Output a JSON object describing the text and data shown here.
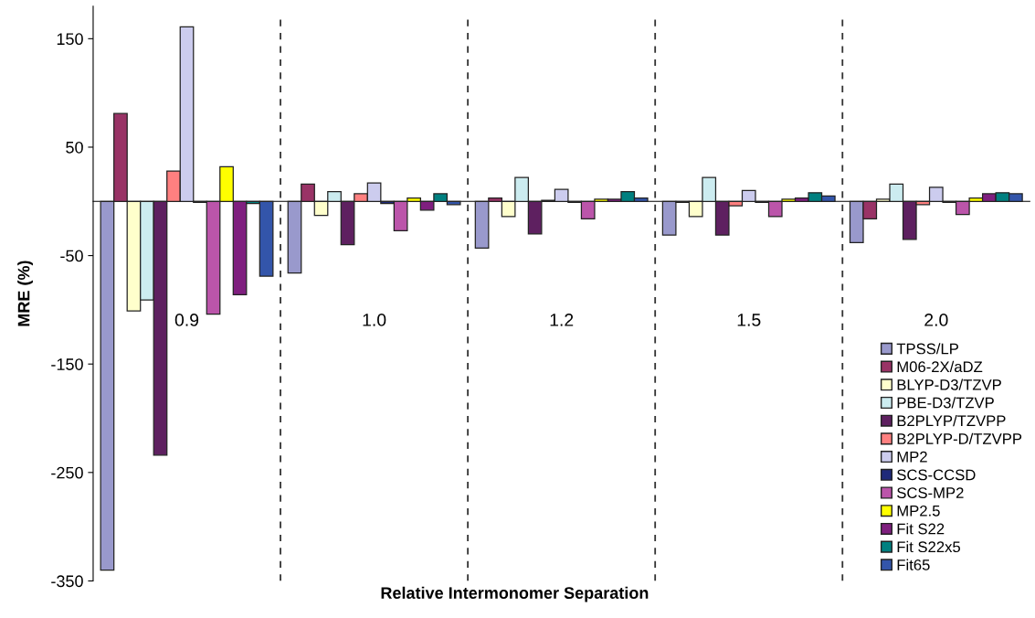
{
  "chart_data": {
    "type": "bar",
    "xlabel": "Relative Intermonomer Separation",
    "ylabel": "MRE (%)",
    "categories": [
      "0.9",
      "1.0",
      "1.2",
      "1.5",
      "2.0"
    ],
    "series": [
      {
        "name": "TPSS/LP",
        "color": "#9999cc",
        "values": [
          -340,
          -66,
          -43,
          -31,
          -38
        ]
      },
      {
        "name": "M06-2X/aDZ",
        "color": "#993366",
        "values": [
          81,
          16,
          3,
          -1,
          -16
        ]
      },
      {
        "name": "BLYP-D3/TZVP",
        "color": "#ffffcc",
        "values": [
          -101,
          -13,
          -14,
          -14,
          2
        ]
      },
      {
        "name": "PBE-D3/TZVP",
        "color": "#ccecf0",
        "values": [
          -91,
          9,
          22,
          22,
          16
        ]
      },
      {
        "name": "B2PLYP/TZVPP",
        "color": "#5e2060",
        "values": [
          -234,
          -40,
          -30,
          -31,
          -35
        ]
      },
      {
        "name": "B2PLYP-D/TZVPP",
        "color": "#ff8080",
        "values": [
          28,
          7,
          1,
          -4,
          -3
        ]
      },
      {
        "name": "MP2",
        "color": "#ccccee",
        "values": [
          161,
          17,
          11,
          10,
          13
        ]
      },
      {
        "name": "SCS-CCSD",
        "color": "#1f2a7a",
        "values": [
          -1,
          -2,
          -1,
          -1,
          -1
        ]
      },
      {
        "name": "SCS-MP2",
        "color": "#bb55aa",
        "values": [
          -104,
          -27,
          -16,
          -14,
          -12
        ]
      },
      {
        "name": "MP2.5",
        "color": "#ffff00",
        "values": [
          32,
          3,
          2,
          2,
          3
        ]
      },
      {
        "name": "Fit S22",
        "color": "#7f1f7f",
        "values": [
          -86,
          -8,
          2,
          3,
          7
        ]
      },
      {
        "name": "Fit S22x5",
        "color": "#008080",
        "values": [
          -2,
          7,
          9,
          8,
          8
        ]
      },
      {
        "name": "Fit65",
        "color": "#3355aa",
        "values": [
          -69,
          -3,
          3,
          5,
          7
        ]
      }
    ],
    "ylim": [
      -350,
      180
    ],
    "yticks": [
      -350,
      -250,
      -150,
      -50,
      50,
      150
    ],
    "grid": false,
    "legend": "bottom right"
  }
}
